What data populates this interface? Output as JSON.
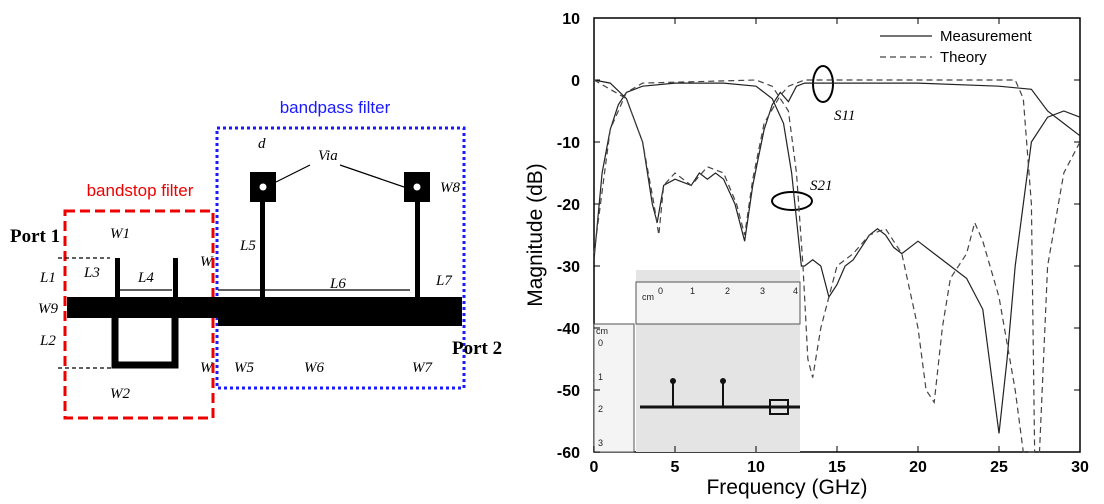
{
  "diagram": {
    "labels": [
      "bandpass filter",
      "bandstop filter",
      "Port 1",
      "Port 2",
      "Via",
      "d",
      "W1",
      "L1",
      "L3",
      "L4",
      "W",
      "W9",
      "L2",
      "W2",
      "W",
      "L5",
      "L6",
      "L7",
      "W8",
      "W5",
      "W6",
      "W7"
    ]
  },
  "inset": {
    "labels": [
      "cm",
      "0",
      "1",
      "2",
      "3",
      "4",
      "cm",
      "0",
      "1",
      "2",
      "3"
    ]
  },
  "chart_data": {
    "type": "line",
    "xlabel": "Frequency (GHz)",
    "ylabel": "Magnitude (dB)",
    "xlim": [
      0,
      30
    ],
    "ylim": [
      -60,
      10
    ],
    "xticks": [
      0,
      5,
      10,
      15,
      20,
      25,
      30
    ],
    "yticks": [
      -60,
      -50,
      -40,
      -30,
      -20,
      -10,
      0,
      10
    ],
    "annotations": [
      "S11",
      "S21"
    ],
    "series": [
      {
        "name": "Measurement",
        "color": "#222222",
        "dash": "solid",
        "x": [
          0,
          1,
          2,
          3,
          3.6,
          3.9,
          4.3,
          5,
          6,
          6.5,
          7,
          7.5,
          8,
          8.7,
          9.3,
          9.8,
          10.5,
          11,
          11.5,
          12,
          12.5,
          13,
          15,
          20,
          25,
          27,
          28,
          29,
          30,
          null,
          0,
          0.5,
          1,
          1.5,
          2,
          3,
          5,
          8,
          10,
          11,
          11.7,
          12.2,
          12.6,
          12.8,
          13,
          13.5,
          14,
          14.5,
          15,
          15.5,
          16,
          17,
          17.5,
          18,
          18.5,
          19,
          20,
          21,
          22,
          23,
          24,
          24.5,
          25,
          25.5,
          26,
          27,
          28,
          29,
          30
        ],
        "values": [
          0,
          -0.5,
          -3,
          -10,
          -20,
          -23,
          -17,
          -16,
          -17,
          -15,
          -16,
          -15,
          -16,
          -20,
          -26,
          -17,
          -8,
          -4,
          -2,
          -3.5,
          -1,
          -0.5,
          -0.5,
          -0.5,
          -1,
          -1.5,
          -5,
          -7,
          -9,
          null,
          -29,
          -15,
          -8,
          -4,
          -2,
          -1,
          -0.5,
          -0.5,
          -1,
          -3,
          -7,
          -15,
          -25,
          -30,
          -30,
          -29,
          -30,
          -35,
          -33,
          -30,
          -29,
          -25,
          -24,
          -25,
          -27,
          -28,
          -26,
          -28,
          -30,
          -32,
          -37,
          -47,
          -57,
          -45,
          -30,
          -10,
          -6,
          -5,
          -6
        ]
      },
      {
        "name": "Theory",
        "color": "#444444",
        "dash": "dashed",
        "x": [
          0,
          2,
          3,
          3.7,
          4,
          4.3,
          5,
          6,
          7,
          8,
          8.8,
          9.3,
          9.8,
          10.5,
          11.5,
          12,
          13,
          20,
          26,
          26.5,
          27,
          27.2,
          null,
          0,
          1,
          2,
          3,
          10,
          11,
          12,
          12.5,
          12.9,
          13.2,
          13.5,
          14,
          14.5,
          15,
          16,
          17,
          18,
          19,
          20,
          20.5,
          21,
          21.5,
          22,
          23,
          23.5,
          24,
          25,
          26,
          26.5,
          27.5,
          28,
          29,
          30
        ],
        "values": [
          0,
          -3,
          -10,
          -20,
          -25,
          -17,
          -15,
          -17,
          -14,
          -15,
          -20,
          -25,
          -16,
          -7,
          -2.5,
          -1,
          0,
          0,
          0,
          -3,
          -20,
          -60,
          null,
          -28,
          -8,
          -2,
          -0.5,
          0,
          -1,
          -5,
          -15,
          -30,
          -45,
          -48,
          -40,
          -35,
          -30,
          -28,
          -25,
          -24,
          -28,
          -40,
          -50,
          -52,
          -40,
          -32,
          -28,
          -23,
          -26,
          -35,
          -50,
          -60,
          -60,
          -30,
          -15,
          -10
        ]
      }
    ]
  }
}
